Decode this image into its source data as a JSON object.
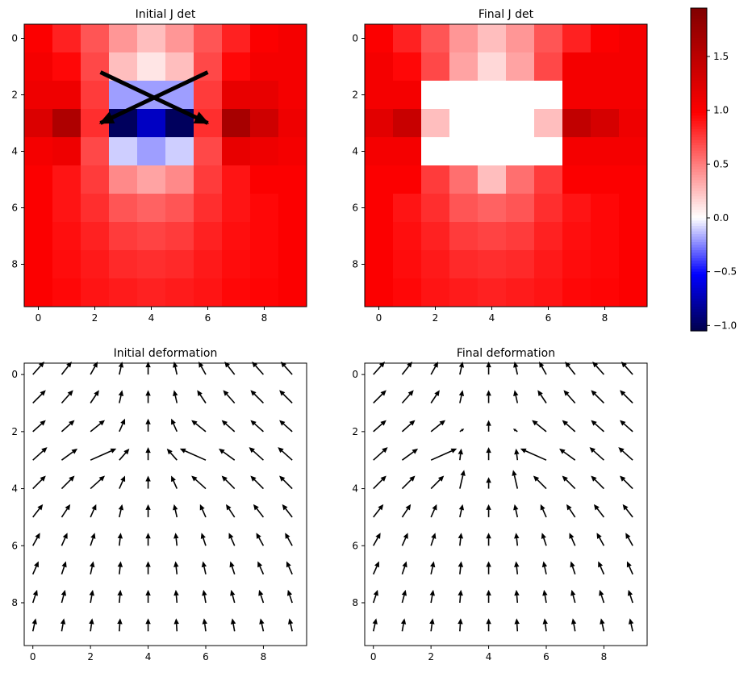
{
  "chart_data": [
    {
      "type": "heatmap",
      "title": "Initial J det",
      "xticks": [
        0,
        2,
        4,
        6,
        8
      ],
      "yticks": [
        0,
        2,
        4,
        6,
        8
      ],
      "xlim": [
        -0.5,
        9.5
      ],
      "ylim": [
        9.5,
        -0.5
      ],
      "values": [
        [
          1.0,
          0.85,
          0.65,
          0.4,
          0.25,
          0.4,
          0.65,
          0.85,
          1.0,
          1.05
        ],
        [
          1.05,
          0.95,
          0.7,
          0.25,
          0.1,
          0.25,
          0.7,
          0.95,
          1.05,
          1.05
        ],
        [
          1.1,
          1.1,
          0.75,
          -0.2,
          -0.2,
          -0.2,
          0.75,
          1.15,
          1.15,
          1.05
        ],
        [
          1.25,
          1.6,
          0.8,
          -1.0,
          -0.7,
          -1.0,
          0.8,
          1.65,
          1.35,
          1.1
        ],
        [
          1.05,
          1.1,
          0.7,
          -0.1,
          -0.2,
          -0.1,
          0.7,
          1.15,
          1.1,
          1.05
        ],
        [
          1.0,
          0.9,
          0.75,
          0.45,
          0.35,
          0.45,
          0.75,
          0.9,
          1.0,
          1.0
        ],
        [
          1.0,
          0.9,
          0.8,
          0.65,
          0.6,
          0.65,
          0.8,
          0.9,
          0.95,
          1.0
        ],
        [
          1.0,
          0.92,
          0.85,
          0.75,
          0.72,
          0.75,
          0.85,
          0.92,
          0.95,
          1.0
        ],
        [
          1.0,
          0.93,
          0.88,
          0.82,
          0.8,
          0.82,
          0.88,
          0.93,
          0.95,
          1.0
        ],
        [
          1.0,
          0.95,
          0.9,
          0.87,
          0.85,
          0.87,
          0.9,
          0.95,
          0.96,
          1.0
        ]
      ],
      "overlay_cross": {
        "color": "#000000",
        "from_a": [
          2.2,
          1.2
        ],
        "to_a": [
          6.0,
          3.0
        ],
        "from_b": [
          6.0,
          1.2
        ],
        "to_b": [
          2.2,
          3.0
        ]
      }
    },
    {
      "type": "heatmap",
      "title": "Final J det",
      "xticks": [
        0,
        2,
        4,
        6,
        8
      ],
      "yticks": [
        0,
        2,
        4,
        6,
        8
      ],
      "xlim": [
        -0.5,
        9.5
      ],
      "ylim": [
        9.5,
        -0.5
      ],
      "values": [
        [
          1.0,
          0.85,
          0.65,
          0.4,
          0.25,
          0.4,
          0.65,
          0.85,
          1.0,
          1.05
        ],
        [
          1.05,
          0.95,
          0.7,
          0.35,
          0.15,
          0.35,
          0.7,
          1.05,
          1.05,
          1.05
        ],
        [
          1.05,
          1.05,
          0.0,
          0.0,
          0.0,
          0.0,
          0.0,
          1.05,
          1.05,
          1.05
        ],
        [
          1.2,
          1.4,
          0.25,
          0.0,
          0.0,
          0.0,
          0.25,
          1.45,
          1.3,
          1.1
        ],
        [
          1.05,
          1.05,
          0.0,
          0.0,
          0.0,
          0.0,
          0.0,
          1.05,
          1.05,
          1.05
        ],
        [
          1.0,
          1.0,
          0.75,
          0.55,
          0.25,
          0.55,
          0.75,
          1.0,
          1.0,
          1.0
        ],
        [
          1.0,
          0.9,
          0.8,
          0.65,
          0.6,
          0.65,
          0.8,
          0.9,
          0.95,
          1.0
        ],
        [
          1.0,
          0.92,
          0.85,
          0.75,
          0.72,
          0.75,
          0.85,
          0.92,
          0.95,
          1.0
        ],
        [
          1.0,
          0.93,
          0.88,
          0.82,
          0.8,
          0.82,
          0.88,
          0.93,
          0.95,
          1.0
        ],
        [
          1.0,
          0.95,
          0.9,
          0.87,
          0.85,
          0.87,
          0.9,
          0.95,
          0.96,
          1.0
        ]
      ]
    },
    {
      "type": "colorbar",
      "colormap": "seismic",
      "vmin": -1.05,
      "vmax": 1.95,
      "ticks": [
        -1.0,
        -0.5,
        0.0,
        0.5,
        1.0,
        1.5
      ],
      "tick_labels": [
        "−1.0",
        "−0.5",
        "0.0",
        "0.5",
        "1.0",
        "1.5"
      ]
    },
    {
      "type": "quiver",
      "title": "Initial deformation",
      "xticks": [
        0,
        2,
        4,
        6,
        8
      ],
      "yticks": [
        0,
        2,
        4,
        6,
        8
      ],
      "xlim": [
        -0.3,
        9.5
      ],
      "ylim": [
        9.5,
        -0.4
      ],
      "u": [
        [
          0.4,
          0.35,
          0.25,
          0.1,
          0.0,
          -0.1,
          -0.25,
          -0.35,
          -0.4,
          -0.4
        ],
        [
          0.45,
          0.4,
          0.3,
          0.1,
          0.0,
          -0.1,
          -0.3,
          -0.4,
          -0.45,
          -0.45
        ],
        [
          0.45,
          0.45,
          0.5,
          0.2,
          0.0,
          -0.2,
          -0.5,
          -0.45,
          -0.45,
          -0.45
        ],
        [
          0.5,
          0.55,
          0.9,
          0.35,
          0.0,
          -0.35,
          -0.9,
          -0.55,
          -0.5,
          -0.5
        ],
        [
          0.45,
          0.45,
          0.5,
          0.2,
          0.0,
          -0.2,
          -0.5,
          -0.45,
          -0.45,
          -0.45
        ],
        [
          0.35,
          0.3,
          0.2,
          0.1,
          0.0,
          -0.1,
          -0.2,
          -0.3,
          -0.35,
          -0.35
        ],
        [
          0.25,
          0.2,
          0.15,
          0.05,
          0.0,
          -0.05,
          -0.15,
          -0.2,
          -0.25,
          -0.25
        ],
        [
          0.2,
          0.15,
          0.1,
          0.05,
          0.0,
          -0.05,
          -0.1,
          -0.15,
          -0.2,
          -0.2
        ],
        [
          0.15,
          0.12,
          0.08,
          0.04,
          0.0,
          -0.04,
          -0.08,
          -0.12,
          -0.15,
          -0.15
        ],
        [
          0.1,
          0.08,
          0.06,
          0.03,
          0.0,
          -0.03,
          -0.06,
          -0.08,
          -0.1,
          -0.1
        ]
      ],
      "v": [
        [
          0.45,
          0.45,
          0.45,
          0.45,
          0.45,
          0.45,
          0.45,
          0.45,
          0.45,
          0.45
        ],
        [
          0.45,
          0.45,
          0.45,
          0.45,
          0.45,
          0.45,
          0.45,
          0.45,
          0.45,
          0.45
        ],
        [
          0.4,
          0.4,
          0.4,
          0.45,
          0.45,
          0.45,
          0.4,
          0.4,
          0.4,
          0.4
        ],
        [
          0.45,
          0.4,
          0.4,
          0.4,
          0.45,
          0.4,
          0.4,
          0.4,
          0.45,
          0.45
        ],
        [
          0.45,
          0.45,
          0.45,
          0.45,
          0.45,
          0.45,
          0.45,
          0.45,
          0.45,
          0.45
        ],
        [
          0.45,
          0.45,
          0.45,
          0.45,
          0.45,
          0.45,
          0.45,
          0.45,
          0.45,
          0.45
        ],
        [
          0.45,
          0.45,
          0.45,
          0.45,
          0.45,
          0.45,
          0.45,
          0.45,
          0.45,
          0.45
        ],
        [
          0.45,
          0.45,
          0.45,
          0.45,
          0.45,
          0.45,
          0.45,
          0.45,
          0.45,
          0.45
        ],
        [
          0.45,
          0.45,
          0.45,
          0.45,
          0.45,
          0.45,
          0.45,
          0.45,
          0.45,
          0.45
        ],
        [
          0.45,
          0.45,
          0.45,
          0.45,
          0.45,
          0.45,
          0.45,
          0.45,
          0.45,
          0.45
        ]
      ]
    },
    {
      "type": "quiver",
      "title": "Final deformation",
      "xticks": [
        0,
        2,
        4,
        6,
        8
      ],
      "yticks": [
        0,
        2,
        4,
        6,
        8
      ],
      "xlim": [
        -0.3,
        9.5
      ],
      "ylim": [
        9.5,
        -0.4
      ],
      "u": [
        [
          0.4,
          0.35,
          0.25,
          0.1,
          0.0,
          -0.1,
          -0.25,
          -0.35,
          -0.4,
          -0.4
        ],
        [
          0.45,
          0.4,
          0.3,
          0.1,
          0.0,
          -0.1,
          -0.3,
          -0.4,
          -0.45,
          -0.45
        ],
        [
          0.45,
          0.45,
          0.5,
          0.15,
          0.0,
          -0.15,
          -0.5,
          -0.45,
          -0.45,
          -0.45
        ],
        [
          0.5,
          0.55,
          0.9,
          0.05,
          0.0,
          -0.05,
          -0.9,
          -0.55,
          -0.5,
          -0.5
        ],
        [
          0.45,
          0.45,
          0.45,
          0.15,
          0.0,
          -0.15,
          -0.45,
          -0.45,
          -0.45,
          -0.45
        ],
        [
          0.35,
          0.3,
          0.2,
          0.1,
          0.0,
          -0.1,
          -0.2,
          -0.3,
          -0.35,
          -0.35
        ],
        [
          0.25,
          0.2,
          0.15,
          0.05,
          0.0,
          -0.05,
          -0.15,
          -0.2,
          -0.25,
          -0.25
        ],
        [
          0.2,
          0.15,
          0.1,
          0.05,
          0.0,
          -0.05,
          -0.1,
          -0.15,
          -0.2,
          -0.2
        ],
        [
          0.15,
          0.12,
          0.08,
          0.04,
          0.0,
          -0.04,
          -0.08,
          -0.12,
          -0.15,
          -0.15
        ],
        [
          0.1,
          0.08,
          0.06,
          0.03,
          0.0,
          -0.03,
          -0.06,
          -0.08,
          -0.1,
          -0.1
        ]
      ],
      "v": [
        [
          0.45,
          0.45,
          0.45,
          0.45,
          0.45,
          0.45,
          0.45,
          0.45,
          0.45,
          0.45
        ],
        [
          0.45,
          0.45,
          0.45,
          0.45,
          0.45,
          0.45,
          0.45,
          0.45,
          0.45,
          0.45
        ],
        [
          0.4,
          0.4,
          0.4,
          0.1,
          0.4,
          0.1,
          0.4,
          0.4,
          0.4,
          0.4
        ],
        [
          0.45,
          0.4,
          0.4,
          0.4,
          0.45,
          0.4,
          0.4,
          0.4,
          0.45,
          0.45
        ],
        [
          0.45,
          0.45,
          0.45,
          0.65,
          0.4,
          0.65,
          0.45,
          0.45,
          0.45,
          0.45
        ],
        [
          0.45,
          0.45,
          0.45,
          0.45,
          0.45,
          0.45,
          0.45,
          0.45,
          0.45,
          0.45
        ],
        [
          0.45,
          0.45,
          0.45,
          0.45,
          0.45,
          0.45,
          0.45,
          0.45,
          0.45,
          0.45
        ],
        [
          0.45,
          0.45,
          0.45,
          0.45,
          0.45,
          0.45,
          0.45,
          0.45,
          0.45,
          0.45
        ],
        [
          0.45,
          0.45,
          0.45,
          0.45,
          0.45,
          0.45,
          0.45,
          0.45,
          0.45,
          0.45
        ],
        [
          0.45,
          0.45,
          0.45,
          0.45,
          0.45,
          0.45,
          0.45,
          0.45,
          0.45,
          0.45
        ]
      ]
    }
  ]
}
